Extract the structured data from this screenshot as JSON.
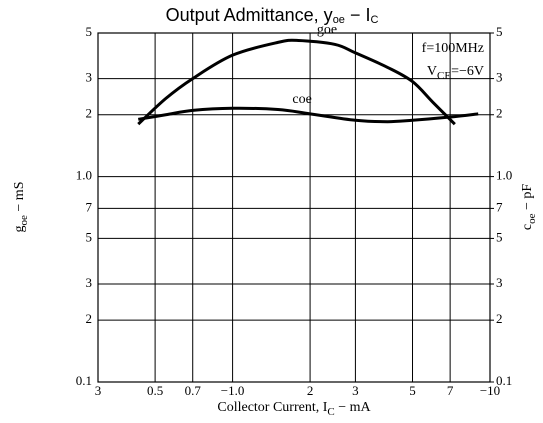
{
  "chart_data": {
    "type": "line",
    "title": [
      "Output Admittance, y",
      "oe",
      " − I",
      "C"
    ],
    "x_label": [
      "Collector Current, I",
      "C",
      " − mA"
    ],
    "y_label": [
      "g",
      "oe",
      " − mS"
    ],
    "y2_label": [
      "c",
      "oe",
      " − pF"
    ],
    "annotations": [
      [
        "f=100MHz"
      ],
      [
        "V",
        "CE",
        "=−6V"
      ]
    ],
    "xscale": "log",
    "yscale": "log",
    "grid": true,
    "xlim": [
      0.3,
      10
    ],
    "xticks": [
      {
        "value": 0.3,
        "label": "3"
      },
      0.5,
      0.7,
      {
        "value": 1,
        "label": "−1.0"
      },
      2,
      3,
      5,
      7,
      {
        "value": 10,
        "label": "−10"
      }
    ],
    "ylim": [
      0.1,
      5
    ],
    "yticks": [
      0.1,
      {
        "value": 0.2,
        "label": "2"
      },
      {
        "value": 0.3,
        "label": "3"
      },
      {
        "value": 0.5,
        "label": "5"
      },
      {
        "value": 0.7,
        "label": "7"
      },
      {
        "value": 1,
        "label": "1.0"
      },
      2,
      3,
      5
    ],
    "y2lim": [
      0.1,
      5
    ],
    "y2ticks": [
      0.1,
      {
        "value": 0.2,
        "label": "2"
      },
      {
        "value": 0.3,
        "label": "3"
      },
      {
        "value": 0.5,
        "label": "5"
      },
      {
        "value": 0.7,
        "label": "7"
      },
      {
        "value": 1,
        "label": "1.0"
      },
      2,
      3,
      5
    ],
    "series": [
      {
        "name": "coe",
        "color": "#000000",
        "axis": "y2",
        "x": [
          0.43,
          0.55,
          0.7,
          1.0,
          1.5,
          2,
          3,
          4,
          5,
          7,
          9
        ],
        "values": [
          1.9,
          2.0,
          2.1,
          2.15,
          2.12,
          2.02,
          1.88,
          1.85,
          1.88,
          1.95,
          2.02
        ]
      },
      {
        "name": "goe",
        "color": "#000000",
        "x": [
          0.43,
          0.55,
          0.7,
          1.0,
          1.5,
          1.8,
          2.5,
          3,
          4,
          5,
          6,
          7.3
        ],
        "values": [
          1.8,
          2.4,
          3.0,
          3.9,
          4.5,
          4.6,
          4.4,
          4.0,
          3.4,
          2.9,
          2.3,
          1.8
        ]
      }
    ]
  }
}
